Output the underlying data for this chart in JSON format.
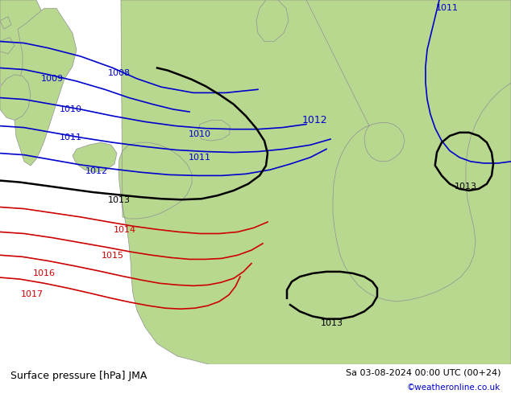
{
  "title_left": "Surface pressure [hPa] JMA",
  "title_right": "Sa 03-08-2024 00:00 UTC (00+24)",
  "credit": "©weatheronline.co.uk",
  "sea_color": "#d0d0d0",
  "land_color": "#b8d890",
  "blue_color": "#0000cc",
  "red_color": "#cc0000",
  "black_color": "#000000",
  "coast_color": "#909090",
  "figsize": [
    6.34,
    4.9
  ],
  "dpi": 100
}
